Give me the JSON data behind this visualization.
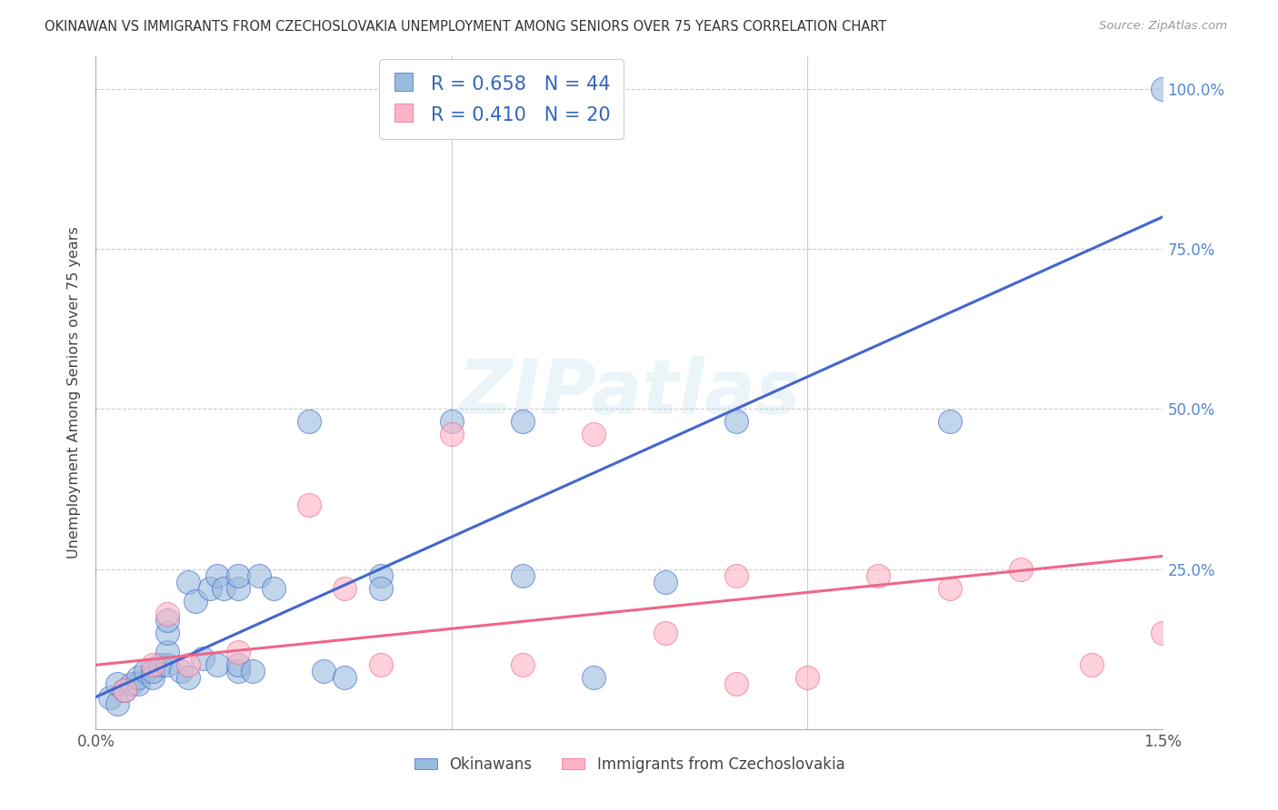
{
  "title": "OKINAWAN VS IMMIGRANTS FROM CZECHOSLOVAKIA UNEMPLOYMENT AMONG SENIORS OVER 75 YEARS CORRELATION CHART",
  "source": "Source: ZipAtlas.com",
  "ylabel": "Unemployment Among Seniors over 75 years",
  "ytick_labels": [
    "25.0%",
    "50.0%",
    "75.0%",
    "100.0%"
  ],
  "ytick_values": [
    0.25,
    0.5,
    0.75,
    1.0
  ],
  "watermark": "ZIPatlas",
  "legend_label1": "Okinawans",
  "legend_label2": "Immigrants from Czechoslovakia",
  "blue_color": "#99BBDD",
  "pink_color": "#FFB3C6",
  "blue_line_color": "#4466CC",
  "pink_line_color": "#EE6688",
  "blue_scatter_x": [
    0.0002,
    0.0003,
    0.0003,
    0.0004,
    0.0005,
    0.0006,
    0.0006,
    0.0007,
    0.0008,
    0.0008,
    0.0009,
    0.001,
    0.001,
    0.001,
    0.001,
    0.0012,
    0.0013,
    0.0013,
    0.0014,
    0.0015,
    0.0016,
    0.0017,
    0.0017,
    0.0018,
    0.002,
    0.002,
    0.002,
    0.002,
    0.0022,
    0.0023,
    0.0025,
    0.003,
    0.0032,
    0.0035,
    0.004,
    0.004,
    0.005,
    0.006,
    0.006,
    0.007,
    0.008,
    0.009,
    0.012,
    0.015
  ],
  "blue_scatter_y": [
    0.05,
    0.04,
    0.07,
    0.06,
    0.07,
    0.07,
    0.08,
    0.09,
    0.08,
    0.09,
    0.1,
    0.1,
    0.12,
    0.15,
    0.17,
    0.09,
    0.08,
    0.23,
    0.2,
    0.11,
    0.22,
    0.1,
    0.24,
    0.22,
    0.09,
    0.1,
    0.22,
    0.24,
    0.09,
    0.24,
    0.22,
    0.48,
    0.09,
    0.08,
    0.24,
    0.22,
    0.48,
    0.48,
    0.24,
    0.08,
    0.23,
    0.48,
    0.48,
    1.0
  ],
  "pink_scatter_x": [
    0.0004,
    0.0008,
    0.001,
    0.0013,
    0.002,
    0.003,
    0.0035,
    0.004,
    0.005,
    0.006,
    0.007,
    0.008,
    0.009,
    0.009,
    0.01,
    0.011,
    0.012,
    0.013,
    0.014,
    0.015
  ],
  "pink_scatter_y": [
    0.06,
    0.1,
    0.18,
    0.1,
    0.12,
    0.35,
    0.22,
    0.1,
    0.46,
    0.1,
    0.46,
    0.15,
    0.07,
    0.24,
    0.08,
    0.24,
    0.22,
    0.25,
    0.1,
    0.15
  ],
  "blue_line_x": [
    0.0,
    0.015
  ],
  "blue_line_y": [
    0.05,
    0.8
  ],
  "pink_line_x": [
    0.0,
    0.015
  ],
  "pink_line_y": [
    0.1,
    0.27
  ],
  "xmin": 0.0,
  "xmax": 0.015,
  "ymin": 0.0,
  "ymax": 1.05,
  "background_color": "#FFFFFF",
  "grid_color": "#CCCCCC",
  "xtick_positions": [
    0.0,
    0.005,
    0.01,
    0.015
  ],
  "xtick_labels": [
    "0.0%",
    "",
    "",
    "1.5%"
  ]
}
